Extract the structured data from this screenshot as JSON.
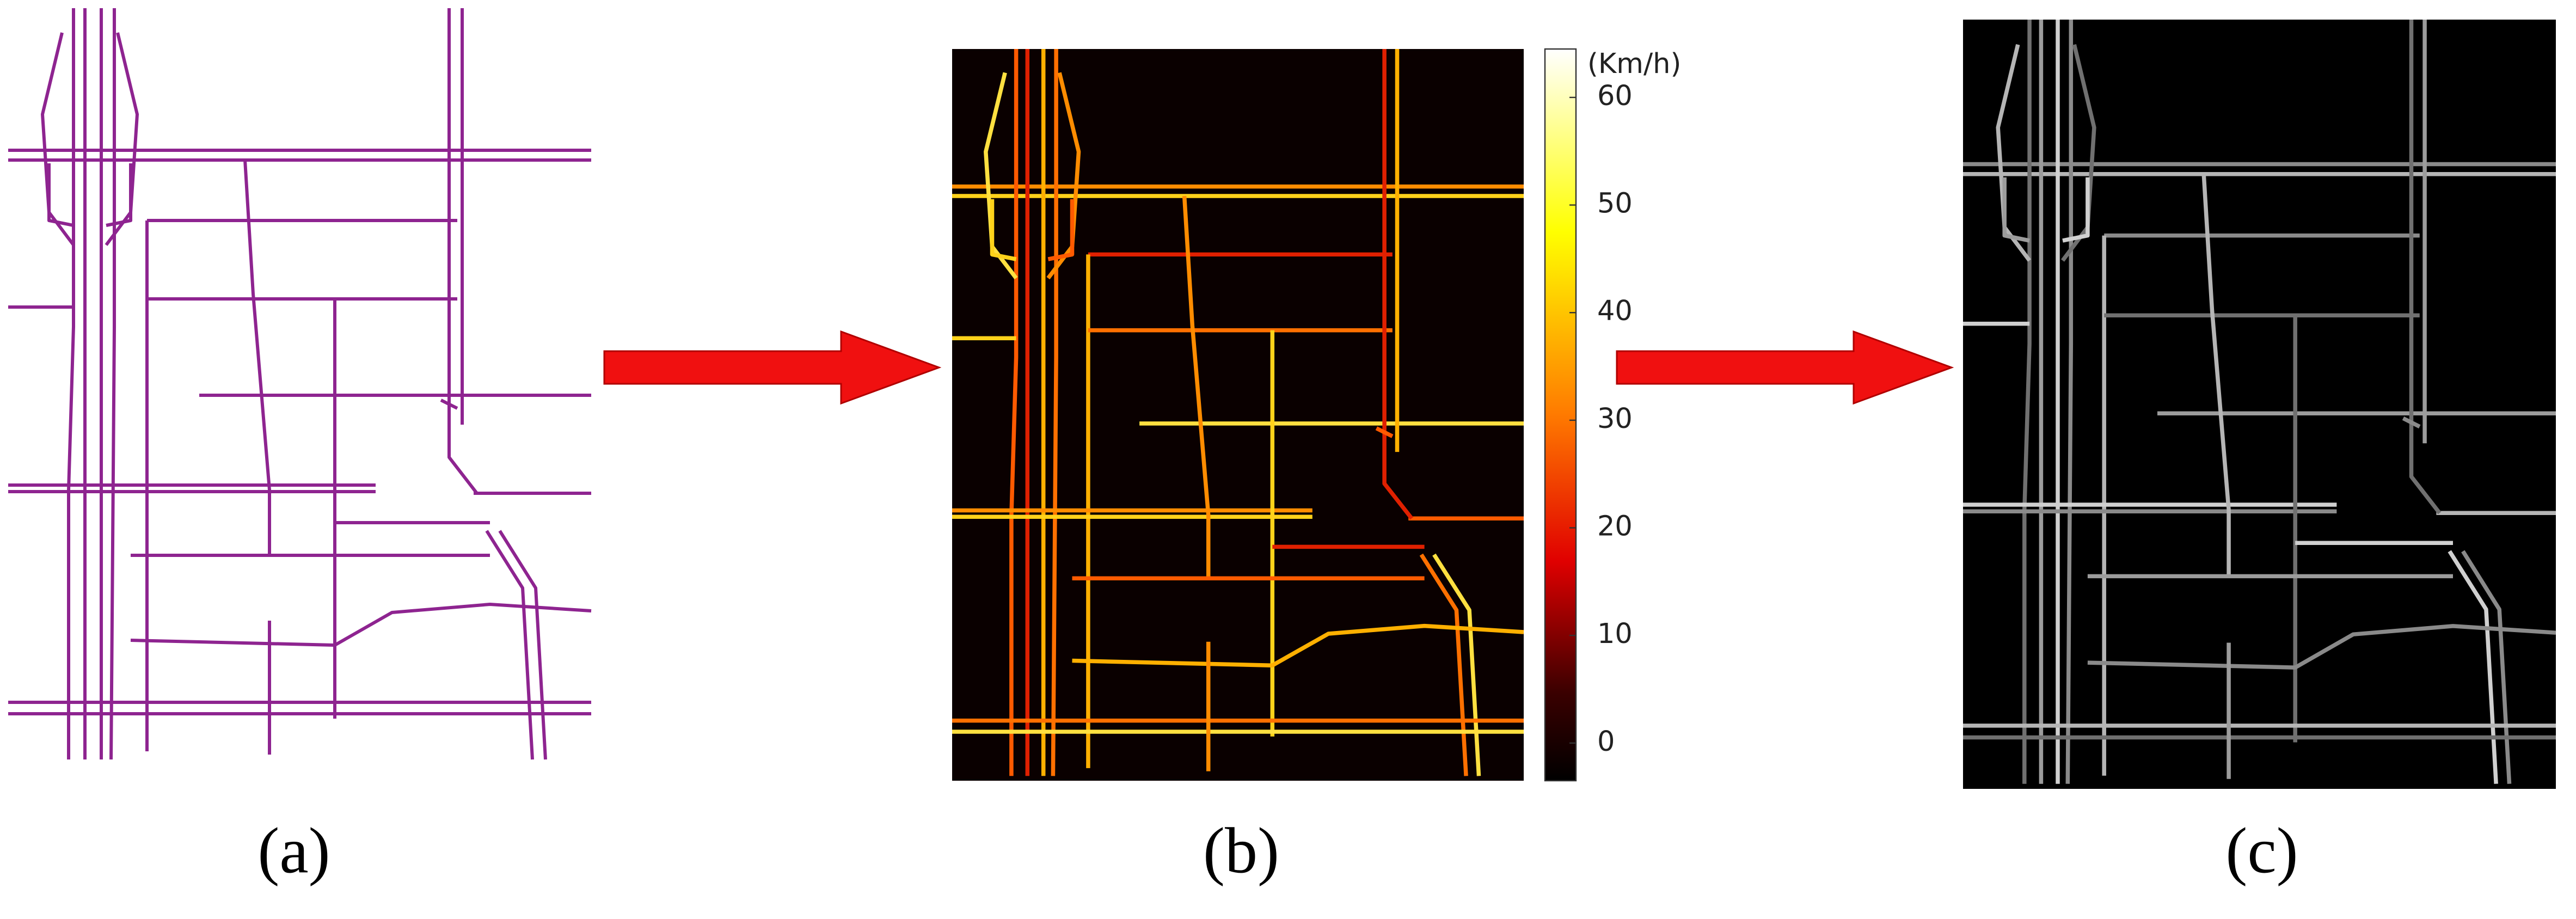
{
  "panels": [
    {
      "label": "(a)"
    },
    {
      "label": "(b)"
    },
    {
      "label": "(c)"
    }
  ],
  "colorbar": {
    "unit": "(Km/h)",
    "lim": [
      -3.5,
      64.5
    ],
    "ticks": [
      0,
      10,
      20,
      30,
      40,
      50,
      60
    ]
  }
}
